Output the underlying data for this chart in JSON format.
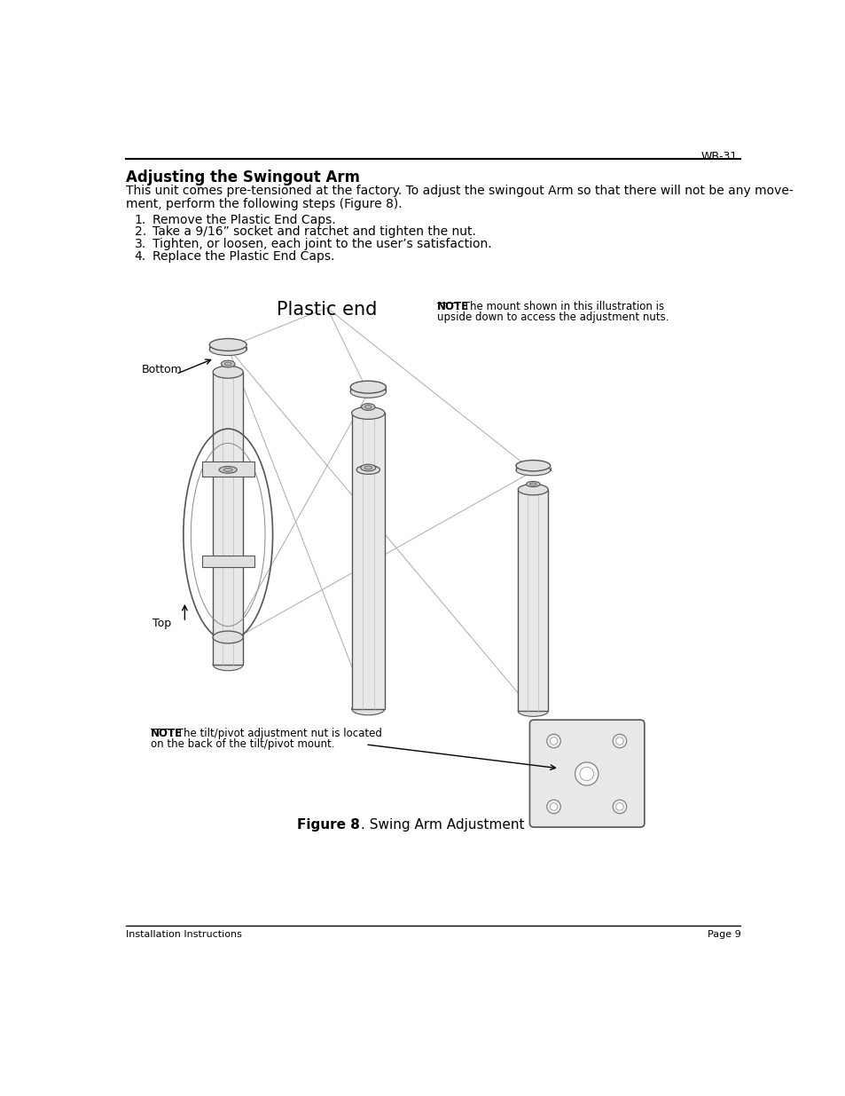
{
  "page_header_right": "WB-31",
  "section_title": "Adjusting the Swingout Arm",
  "body_line1": "This unit comes pre-tensioned at the factory. To adjust the swingout Arm so that there will not be any move-",
  "body_line2": "ment, perform the following steps (Figure 8).",
  "steps": [
    "Remove the Plastic End Caps.",
    "Take a 9/16” socket and ratchet and tighten the nut.",
    "Tighten, or loosen, each joint to the user’s satisfaction.",
    "Replace the Plastic End Caps."
  ],
  "plastic_end_label": "Plastic end",
  "note_illus_line1": ": The mount shown in this illustration is",
  "note_illus_line2": "upside down to access the adjustment nuts.",
  "bottom_label": "Bottom",
  "top_label": "Top",
  "note_bottom_line1": ": The tilt/pivot adjustment nut is located",
  "note_bottom_line2": "on the back of the tilt/pivot mount.",
  "figure_caption_bold": "Figure 8",
  "figure_caption_rest": ". Swing Arm Adjustment",
  "footer_left": "Installation Instructions",
  "footer_right": "Page 9",
  "bg_color": "#ffffff",
  "text_color": "#000000",
  "line_color": "#000000",
  "draw_color": "#555555",
  "draw_fill": "#e8e8e8",
  "draw_fill2": "#e0e0e0"
}
